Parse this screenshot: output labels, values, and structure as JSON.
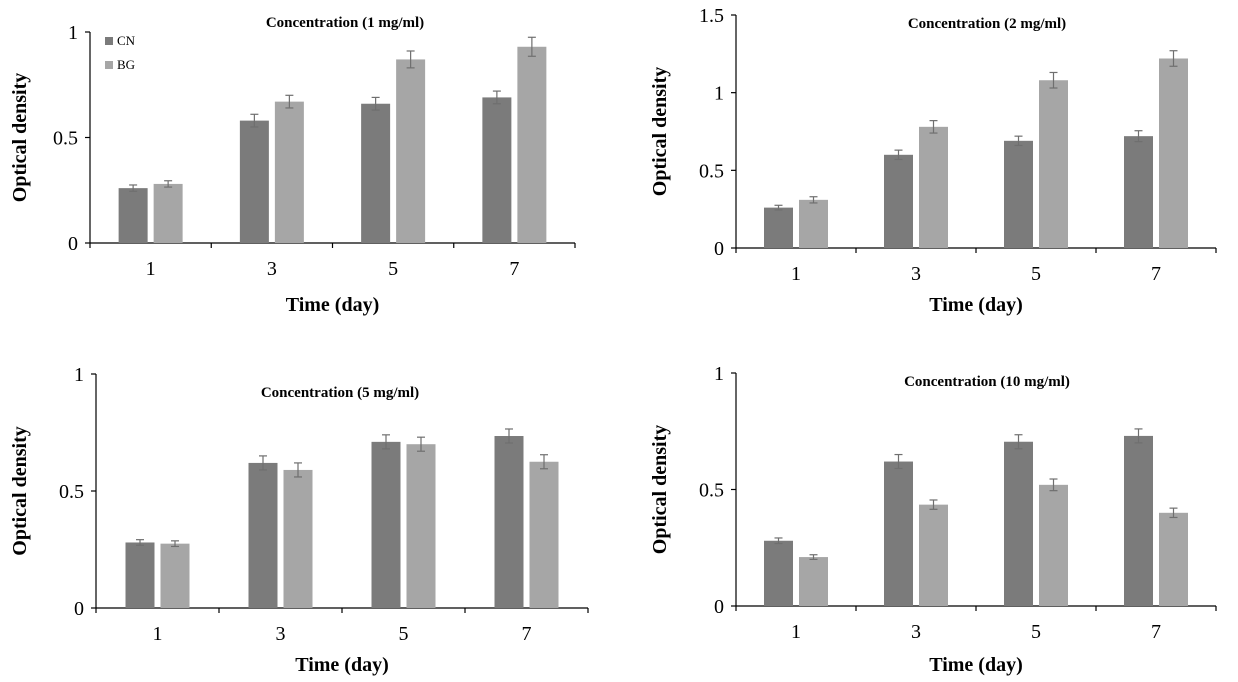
{
  "colors": {
    "CN": "#7b7b7b",
    "BG": "#a6a6a6"
  },
  "chart_data": [
    {
      "type": "bar",
      "title": "Concentration (1 mg/ml)",
      "xlabel": "Time (day)",
      "ylabel": "Optical density",
      "categories": [
        "1",
        "3",
        "5",
        "7"
      ],
      "yticks": [
        "0",
        "0.5",
        "1"
      ],
      "ylim": [
        0,
        1
      ],
      "legend": "top-left",
      "series": [
        {
          "name": "CN",
          "values": [
            0.26,
            0.58,
            0.66,
            0.69
          ],
          "errors": [
            0.015,
            0.03,
            0.03,
            0.03
          ]
        },
        {
          "name": "BG",
          "values": [
            0.28,
            0.67,
            0.87,
            0.93
          ],
          "errors": [
            0.015,
            0.03,
            0.04,
            0.045
          ]
        }
      ]
    },
    {
      "type": "bar",
      "title": "Concentration (2 mg/ml)",
      "xlabel": "Time (day)",
      "ylabel": "Optical density",
      "categories": [
        "1",
        "3",
        "5",
        "7"
      ],
      "yticks": [
        "0",
        "0.5",
        "1",
        "1.5"
      ],
      "ylim": [
        0,
        1.5
      ],
      "series": [
        {
          "name": "CN",
          "values": [
            0.26,
            0.6,
            0.69,
            0.72
          ],
          "errors": [
            0.015,
            0.03,
            0.03,
            0.035
          ]
        },
        {
          "name": "BG",
          "values": [
            0.31,
            0.78,
            1.08,
            1.22
          ],
          "errors": [
            0.02,
            0.04,
            0.05,
            0.05
          ]
        }
      ]
    },
    {
      "type": "bar",
      "title": "Concentration (5 mg/ml)",
      "xlabel": "Time (day)",
      "ylabel": "Optical density",
      "categories": [
        "1",
        "3",
        "5",
        "7"
      ],
      "yticks": [
        "0",
        "0.5",
        "1"
      ],
      "ylim": [
        0,
        1
      ],
      "series": [
        {
          "name": "CN",
          "values": [
            0.28,
            0.62,
            0.71,
            0.735
          ],
          "errors": [
            0.012,
            0.03,
            0.03,
            0.03
          ]
        },
        {
          "name": "BG",
          "values": [
            0.275,
            0.59,
            0.7,
            0.625
          ],
          "errors": [
            0.012,
            0.03,
            0.03,
            0.03
          ]
        }
      ]
    },
    {
      "type": "bar",
      "title": "Concentration (10 mg/ml)",
      "xlabel": "Time (day)",
      "ylabel": "Optical density",
      "categories": [
        "1",
        "3",
        "5",
        "7"
      ],
      "yticks": [
        "0",
        "0.5",
        "1"
      ],
      "ylim": [
        0,
        1
      ],
      "series": [
        {
          "name": "CN",
          "values": [
            0.28,
            0.62,
            0.705,
            0.73
          ],
          "errors": [
            0.012,
            0.03,
            0.03,
            0.03
          ]
        },
        {
          "name": "BG",
          "values": [
            0.21,
            0.435,
            0.52,
            0.4
          ],
          "errors": [
            0.01,
            0.02,
            0.025,
            0.02
          ]
        }
      ]
    }
  ]
}
